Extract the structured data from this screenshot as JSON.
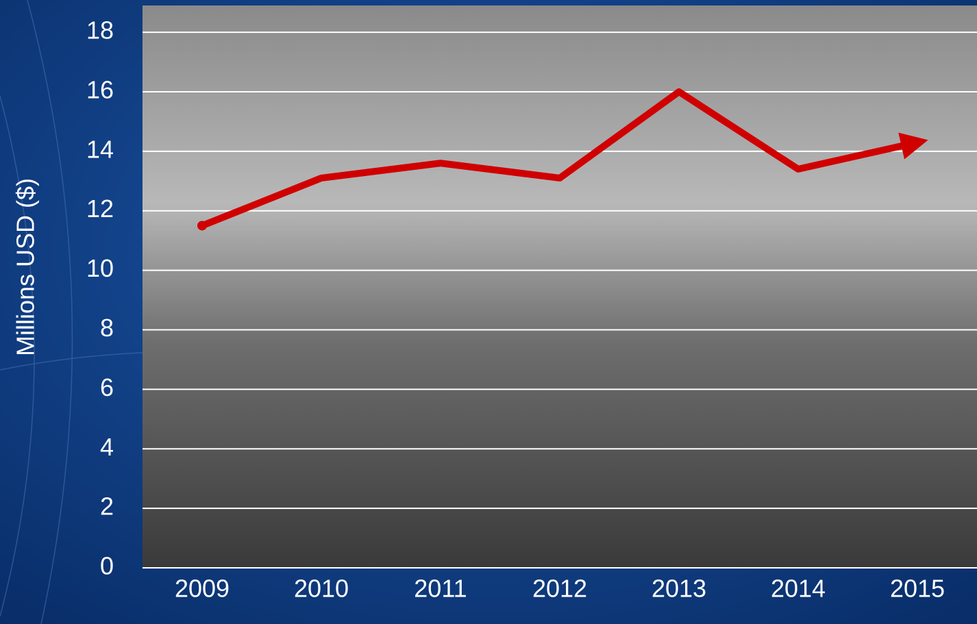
{
  "chart_data": {
    "type": "line",
    "y_label": "Millions USD ($)",
    "categories": [
      "2009",
      "2010",
      "2011",
      "2012",
      "2013",
      "2014",
      "2015"
    ],
    "series": [
      {
        "name": "Millions USD",
        "color": "#d00000",
        "values": [
          11.5,
          13.1,
          13.6,
          13.1,
          16.0,
          13.4,
          14.3
        ]
      }
    ],
    "ylim": [
      0,
      18.9
    ],
    "yticks": [
      0,
      2,
      4,
      6,
      8,
      10,
      12,
      14,
      16,
      18
    ],
    "grid": true
  }
}
